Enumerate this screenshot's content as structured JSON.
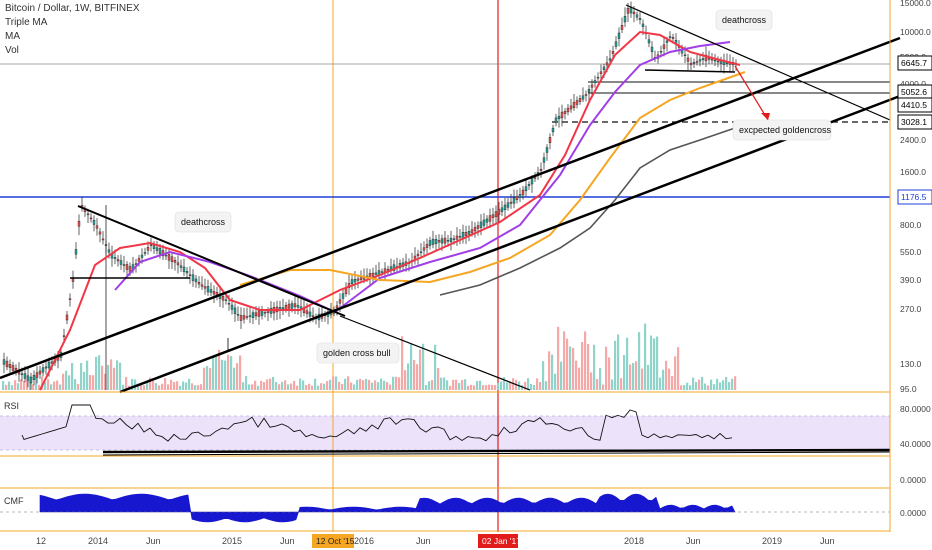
{
  "header": {
    "title": "Bitcoin / Dollar, 1W, BITFINEX",
    "indicators": [
      "Triple MA",
      "MA",
      "Vol"
    ]
  },
  "colors": {
    "candle_up": "#26a69a",
    "candle_down": "#ef5350",
    "vol_up": "#8fd3cb",
    "vol_down": "#f4a8a8",
    "ma_red": "#f23645",
    "ma_purple": "#a23ee8",
    "ma_orange": "#f5a623",
    "ma_gray": "#555555",
    "rsi_band": "#ece3fb",
    "cmf": "#1717d0",
    "orange_line": "#f5a623",
    "red_line": "#e21b1b",
    "blue_line": "#1f3fd8"
  },
  "annotations": {
    "deathcross_top": "deathcross",
    "deathcross_left": "deathcross",
    "golden_cross_bull": "golden cross bull",
    "expected_goldencross": "excpected goldencross"
  },
  "price_axis": {
    "ticks": [
      "15000.0",
      "10000.0",
      "5900.0",
      "4000.0",
      "2400.0",
      "1600.0",
      "800.0",
      "550.0",
      "390.0",
      "270.0",
      "130.0",
      "95.0"
    ],
    "tags": [
      "6645.7",
      "5052.6",
      "4410.5",
      "3028.1",
      "1176.5"
    ]
  },
  "rsi": {
    "label": "RSI",
    "ticks": [
      "80.0000",
      "40.0000"
    ]
  },
  "cmf": {
    "label": "CMF",
    "ticks": [
      "0.0000",
      "0.0000"
    ]
  },
  "time_axis": {
    "labels": [
      "12",
      "2014",
      "Jun",
      "2015",
      "Jun",
      "2016",
      "Jun",
      "2018",
      "Jun",
      "2019",
      "Jun"
    ],
    "highlight_orange": "12 Oct '15",
    "highlight_red": "02 Jan '17"
  },
  "chart_data": {
    "type": "line",
    "title": "Bitcoin / Dollar, 1W, BITFINEX",
    "y_scale": "log",
    "ylim": [
      95,
      15000
    ],
    "series": [
      {
        "name": "Bitcoin / Dollar",
        "points": [
          [
            "2013-08",
            100
          ],
          [
            "2013-10",
            130
          ],
          [
            "2013-11",
            200
          ],
          [
            "2013-12",
            1100
          ],
          [
            "2014-01",
            850
          ],
          [
            "2014-03",
            600
          ],
          [
            "2014-06",
            620
          ],
          [
            "2014-08",
            500
          ],
          [
            "2014-12",
            330
          ],
          [
            "2015-01",
            210
          ],
          [
            "2015-06",
            250
          ],
          [
            "2015-10",
            240
          ],
          [
            "2015-11",
            400
          ],
          [
            "2016-06",
            650
          ],
          [
            "2016-12",
            900
          ],
          [
            "2017-01",
            1000
          ],
          [
            "2017-03",
            1200
          ],
          [
            "2017-06",
            2500
          ],
          [
            "2017-09",
            4400
          ],
          [
            "2017-12",
            14000
          ],
          [
            "2018-01",
            11000
          ],
          [
            "2018-02",
            8000
          ],
          [
            "2018-04",
            9000
          ],
          [
            "2018-06",
            6400
          ],
          [
            "2018-08",
            6645.7
          ]
        ]
      }
    ],
    "horizontal_levels": [
      6645.7,
      5052.6,
      4410.5,
      3028.1,
      1176.5
    ],
    "rsi_levels": [
      80,
      40
    ]
  }
}
